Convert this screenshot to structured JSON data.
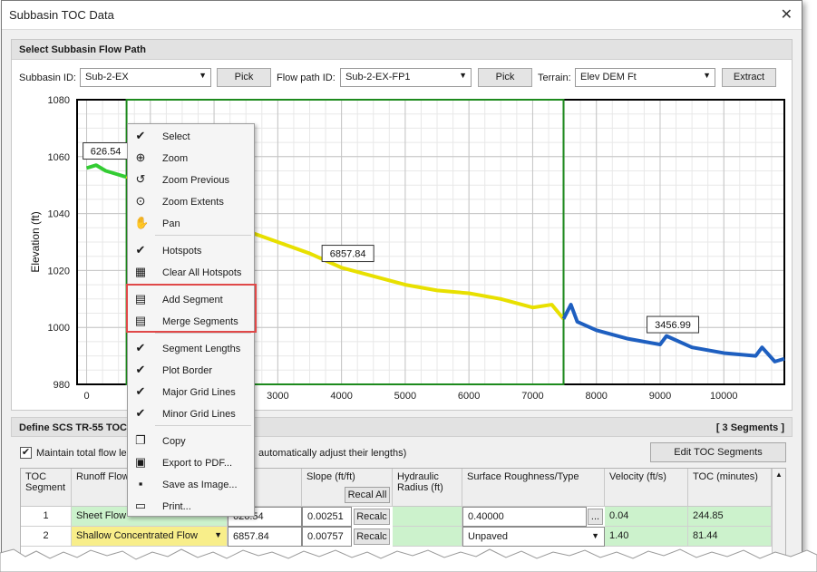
{
  "window": {
    "title": "Subbasin TOC Data",
    "close": "✕"
  },
  "flowpath": {
    "header": "Select Subbasin Flow Path",
    "subbasin_label": "Subbasin ID:",
    "subbasin_value": "Sub-2-EX",
    "pick_label": "Pick",
    "flowpath_label": "Flow path ID:",
    "flowpath_value": "Sub-2-EX-FP1",
    "pick2_label": "Pick",
    "terrain_label": "Terrain:",
    "terrain_value": "Elev DEM Ft",
    "extract_label": "Extract"
  },
  "chart_data": {
    "type": "line",
    "ylabel": "Elevation (ft)",
    "xlabel": "",
    "xlim": [
      -150,
      10950
    ],
    "ylim": [
      980,
      1080
    ],
    "x_ticks": [
      0,
      1000,
      2000,
      3000,
      4000,
      5000,
      6000,
      7000,
      8000,
      9000,
      10000,
      11000
    ],
    "x_tick_labels_visible": [
      "0",
      "3000",
      "4000",
      "5000",
      "6000",
      "7000",
      "8000",
      "9000",
      "10000"
    ],
    "y_ticks": [
      980,
      1000,
      1020,
      1040,
      1060,
      1080
    ],
    "grid": true,
    "series": [
      {
        "color": "#33cc33",
        "x": [
          0,
          150,
          300,
          450,
          600,
          626.54
        ],
        "y": [
          1056,
          1057,
          1055,
          1054,
          1053,
          1053
        ]
      },
      {
        "color": "#e8e000",
        "x": [
          626.54,
          1500,
          2500,
          3000,
          3500,
          4000,
          4500,
          5000,
          5500,
          6000,
          6500,
          7000,
          7300,
          7484.38
        ],
        "y": [
          1053,
          1043,
          1034,
          1030,
          1026,
          1021,
          1018,
          1015,
          1013,
          1012,
          1010,
          1007,
          1008,
          1003
        ]
      },
      {
        "color": "#1e5fc0",
        "x": [
          7484.38,
          7600,
          7700,
          8000,
          8500,
          9000,
          9100,
          9500,
          10000,
          10500,
          10600,
          10800,
          10950
        ],
        "y": [
          1003,
          1008,
          1002,
          999,
          996,
          994,
          997,
          993,
          991,
          990,
          993,
          988,
          989
        ]
      }
    ],
    "annotations": [
      {
        "text": "626.54",
        "x": 300,
        "y": 1062
      },
      {
        "text": "6857.84",
        "x": 4100,
        "y": 1026
      },
      {
        "text": "3456.99",
        "x": 9200,
        "y": 1001
      }
    ]
  },
  "context_menu": {
    "items": [
      {
        "icon": "check-icon",
        "glyph": "✔",
        "label": "Select"
      },
      {
        "icon": "zoom-icon",
        "glyph": "⊕",
        "label": "Zoom"
      },
      {
        "icon": "zoom-previous-icon",
        "glyph": "↺",
        "label": "Zoom Previous"
      },
      {
        "icon": "zoom-extents-icon",
        "glyph": "⊙",
        "label": "Zoom Extents"
      },
      {
        "icon": "pan-icon",
        "glyph": "✋",
        "label": "Pan"
      },
      {
        "icon": "check-icon",
        "glyph": "✔",
        "label": "Hotspots"
      },
      {
        "icon": "clear-hotspots-icon",
        "glyph": "▦",
        "label": "Clear All Hotspots"
      },
      {
        "icon": "add-segment-icon",
        "glyph": "▤",
        "label": "Add Segment"
      },
      {
        "icon": "merge-segments-icon",
        "glyph": "▤",
        "label": "Merge Segments"
      },
      {
        "icon": "check-icon",
        "glyph": "✔",
        "label": "Segment Lengths"
      },
      {
        "icon": "check-icon",
        "glyph": "✔",
        "label": "Plot Border"
      },
      {
        "icon": "check-icon",
        "glyph": "✔",
        "label": "Major Grid Lines"
      },
      {
        "icon": "check-icon",
        "glyph": "✔",
        "label": "Minor Grid Lines"
      },
      {
        "icon": "copy-icon",
        "glyph": "❐",
        "label": "Copy"
      },
      {
        "icon": "pdf-icon",
        "glyph": "▣",
        "label": "Export to PDF..."
      },
      {
        "icon": "save-image-icon",
        "glyph": "▪",
        "label": "Save as Image..."
      },
      {
        "icon": "print-icon",
        "glyph": "▭",
        "label": "Print..."
      }
    ]
  },
  "toc": {
    "header": "Define SCS TR-55 TOC D",
    "segments_count": "[ 3 Segments ]",
    "maintain_check": "✔",
    "maintain_label_left": "Maintain total flow le",
    "maintain_label_right": "automatically adjust their lengths)",
    "edit_button": "Edit TOC Segments",
    "columns": {
      "segment": "TOC Segment",
      "runoff": "Runoff Flow",
      "length": "th (ft)",
      "slope": "Slope (ft/ft)",
      "recal_all": "Recal All",
      "hydraulic": "Hydraulic Radius (ft)",
      "surface": "Surface Roughness/Type",
      "velocity": "Velocity (ft/s)",
      "toc": "TOC (minutes)"
    },
    "rows": [
      {
        "segment": "1",
        "runoff": "Sheet Flow",
        "length": "626.54",
        "slope": "0.00251",
        "recalc": "Recalc",
        "hydraulic": "",
        "surface": "0.40000",
        "surface_btn": "...",
        "velocity": "0.04",
        "toc": "244.85"
      },
      {
        "segment": "2",
        "runoff": "Shallow Concentrated Flow",
        "length": "6857.84",
        "slope": "0.00757",
        "recalc": "Recalc",
        "hydraulic": "",
        "surface": "Unpaved",
        "surface_btn": "▼",
        "velocity": "1.40",
        "toc": "81.44"
      }
    ]
  }
}
